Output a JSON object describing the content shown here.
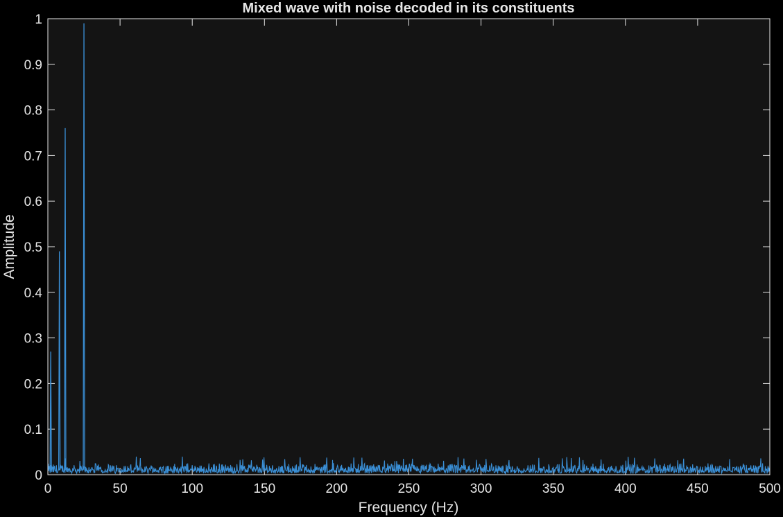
{
  "chart_data": {
    "type": "line",
    "title": "Mixed wave with noise decoded in its constituents",
    "xlabel": "Frequency (Hz)",
    "ylabel": "Amplitude",
    "xlim": [
      0,
      500
    ],
    "ylim": [
      0,
      1
    ],
    "x_ticks": [
      "0",
      "50",
      "100",
      "150",
      "200",
      "250",
      "300",
      "350",
      "400",
      "450",
      "500"
    ],
    "y_ticks": [
      "0",
      "0.1",
      "0.2",
      "0.3",
      "0.4",
      "0.5",
      "0.6",
      "0.7",
      "0.8",
      "0.9",
      "1"
    ],
    "grid": false,
    "series": [
      {
        "color": "#3a8fd6",
        "peaks": [
          {
            "x": 2,
            "y": 0.27
          },
          {
            "x": 8,
            "y": 0.49
          },
          {
            "x": 12,
            "y": 0.76
          },
          {
            "x": 25,
            "y": 0.99
          }
        ],
        "noise_floor": {
          "x_start": 0,
          "x_end": 500,
          "y_max": 0.04,
          "y_typical": 0.015
        }
      }
    ]
  },
  "colors": {
    "background": "#000000",
    "plot_area": "#141414",
    "axes": "#e6e6e6",
    "line": "#3a8fd6"
  }
}
